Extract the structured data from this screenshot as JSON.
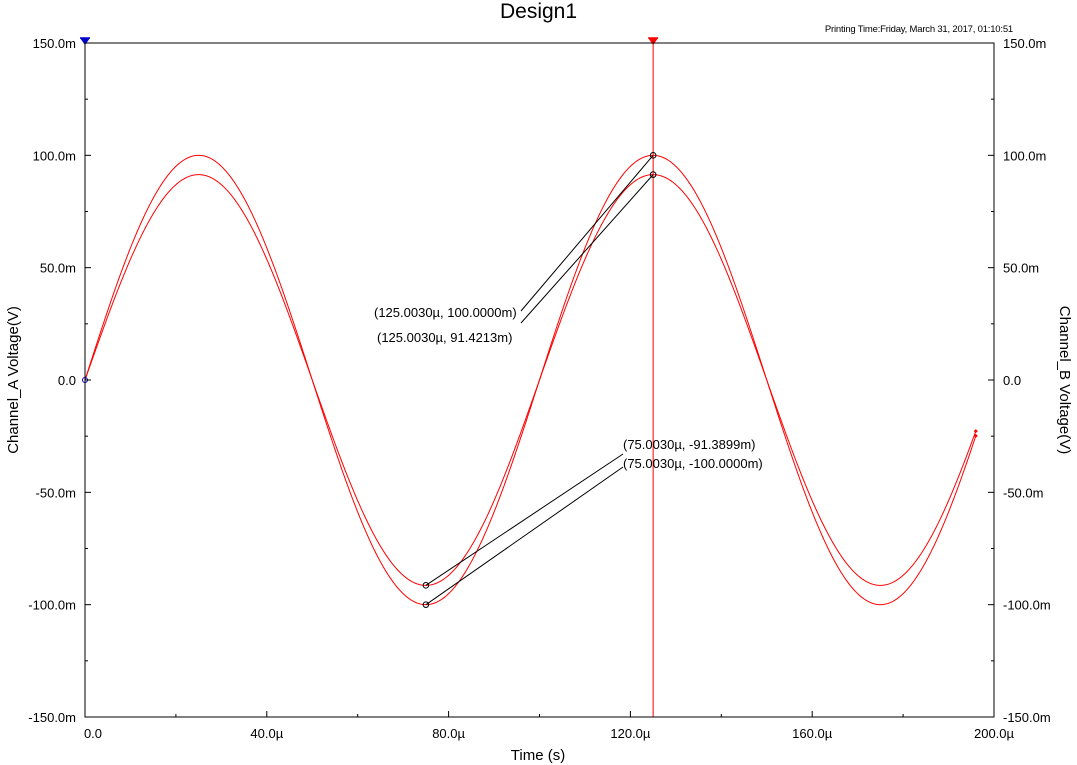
{
  "title": "Design1",
  "printing_time": "Printing Time:Friday, March 31, 2017, 01:10:51",
  "chart_data": {
    "type": "line",
    "title": "Design1",
    "xlabel": "Time (s)",
    "ylabel_left": "Channel_A Voltage(V)",
    "ylabel_right": "Channel_B Voltage(V)",
    "xlim": [
      0,
      200
    ],
    "ylim": [
      -150,
      150
    ],
    "x_unit": "µs",
    "y_unit": "mV",
    "x_ticks": [
      0,
      40,
      80,
      120,
      160,
      200
    ],
    "x_tick_labels": [
      "0.0",
      "40.0µ",
      "80.0µ",
      "120.0µ",
      "160.0µ",
      "200.0µ"
    ],
    "y_ticks": [
      150,
      100,
      50,
      0,
      -50,
      -100,
      -150
    ],
    "y_tick_labels_left": [
      "150.0m",
      "100.0m",
      "50.0m",
      "0.0",
      "-50.0m",
      "-100.0m",
      "-150.0m"
    ],
    "y_tick_labels_right": [
      "150.0m",
      "100.0m",
      "50.0m",
      "0.0",
      "-50.0m",
      "-100.0m",
      "-150.0m"
    ],
    "grid": false,
    "colors": {
      "trace": "#ff0000",
      "cursor1": "#0000cc",
      "cursor2": "#ff0000",
      "annotation": "#000000",
      "axis": "#000000"
    },
    "series": [
      {
        "channel": "A",
        "amplitude_mV": 100,
        "frequency_kHz": 10,
        "phase_deg": 0,
        "x_start": 0,
        "x_end": 196
      },
      {
        "channel": "B",
        "amplitude_mV": 91.42,
        "frequency_kHz": 10,
        "phase_deg": 0,
        "x_start": 0,
        "x_end": 196
      }
    ],
    "cursors": [
      {
        "color": "blue",
        "x": 0
      },
      {
        "color": "red",
        "x": 125.003
      }
    ],
    "annotations": [
      {
        "label": "(125.0030µ, 100.0000m)",
        "x": 125.003,
        "y": 100.0
      },
      {
        "label": "(125.0030µ, 91.4213m)",
        "x": 125.003,
        "y": 91.4213
      },
      {
        "label": "(75.0030µ, -91.3899m)",
        "x": 75.003,
        "y": -91.3899
      },
      {
        "label": "(75.0030µ, -100.0000m)",
        "x": 75.003,
        "y": -100.0
      }
    ]
  }
}
